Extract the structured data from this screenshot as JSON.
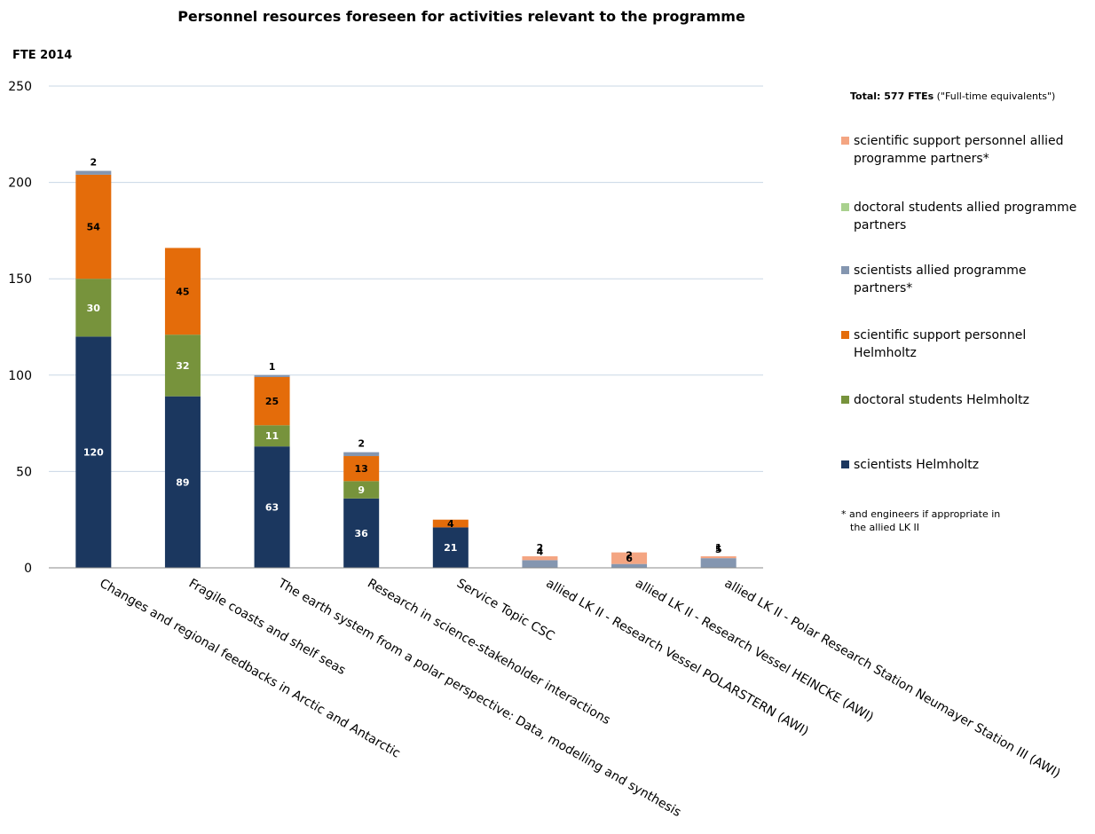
{
  "chart_data": {
    "type": "bar",
    "stacked": true,
    "title": "Personnel resources foreseen for activities relevant to the programme",
    "ylabel": "FTE 2014",
    "xlabel": "",
    "ylim": [
      0,
      250
    ],
    "yticks": [
      0,
      50,
      100,
      150,
      200,
      250
    ],
    "grid": true,
    "legend_position": "right",
    "categories": [
      "Changes and regional feedbacks in Arctic and Antarctic",
      "Fragile coasts and shelf seas",
      "The earth system from a polar perspective: Data, modelling and synthesis",
      "Research in science-stakeholder interactions",
      "Service Topic CSC",
      "allied LK II - Research Vessel POLARSTERN (AWI)",
      "allied LK II - Research Vessel HEINCKE (AWI)",
      "allied LK II - Polar Research Station Neumayer Station III (AWI)"
    ],
    "series": [
      {
        "name": "scientists Helmholtz",
        "color": "#1b375f",
        "values": [
          120,
          89,
          63,
          36,
          21,
          0,
          0,
          0
        ]
      },
      {
        "name": "doctoral students Helmholtz",
        "color": "#77933c",
        "values": [
          30,
          32,
          11,
          9,
          0,
          0,
          0,
          0
        ]
      },
      {
        "name": "scientific support personnel Helmholtz",
        "color": "#e46c0a",
        "values": [
          54,
          45,
          25,
          13,
          4,
          0,
          0,
          0
        ]
      },
      {
        "name": "scientists allied programme partners*",
        "color": "#8496b0",
        "values": [
          2,
          0,
          1,
          2,
          0,
          4,
          2,
          5
        ]
      },
      {
        "name": "doctoral students allied programme partners",
        "color": "#a9d18e",
        "values": [
          0,
          0,
          0,
          0,
          0,
          0,
          0,
          0
        ]
      },
      {
        "name": "scientific support personnel allied programme partners*",
        "color": "#f4a582",
        "values": [
          0,
          0,
          0,
          0,
          0,
          2,
          6,
          1
        ]
      }
    ],
    "labels": [
      [
        "120",
        "30",
        "54",
        "2",
        "",
        ""
      ],
      [
        "89",
        "32",
        "45",
        "",
        "",
        ""
      ],
      [
        "63",
        "11",
        "25",
        "1",
        "",
        ""
      ],
      [
        "36",
        "9",
        "13",
        "2",
        "",
        ""
      ],
      [
        "21",
        "",
        "4",
        "",
        "",
        ""
      ],
      [
        "",
        "",
        "",
        "4",
        "",
        "2"
      ],
      [
        "",
        "",
        "",
        "2",
        "",
        "6"
      ],
      [
        "",
        "",
        "",
        "5",
        "",
        "1"
      ]
    ],
    "total_bold": "Total: 577 FTEs",
    "total_note": " (\"Full-time equivalents\")",
    "footnote_lines": [
      "* and engineers if appropriate in",
      "the allied LK II"
    ]
  }
}
